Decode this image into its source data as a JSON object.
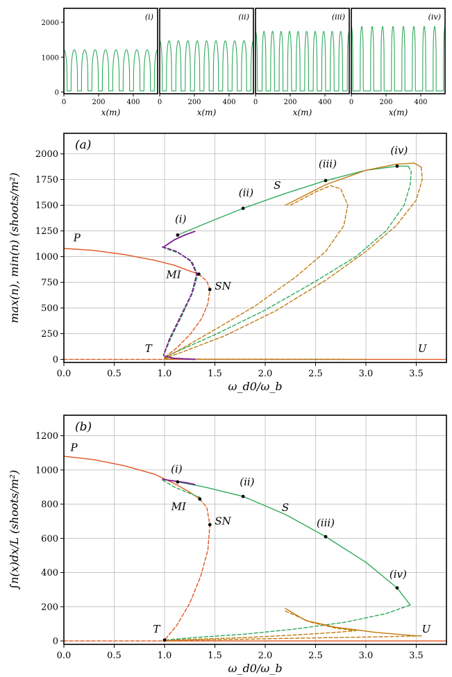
{
  "colors": {
    "P": "#e0541f",
    "S": "#2eaa5a",
    "T": "#c07a10",
    "MI": "#7a1c8c",
    "U": "#e0541f",
    "grid": "#bdbdbd"
  },
  "chart_data": [
    {
      "type": "line",
      "panel": "top-profiles",
      "panels": [
        {
          "tag": "(i)",
          "amplitude": 1210,
          "peaks": 9,
          "width": 0.62
        },
        {
          "tag": "(ii)",
          "amplitude": 1470,
          "peaks": 10,
          "width": 0.55
        },
        {
          "tag": "(iii)",
          "amplitude": 1740,
          "peaks": 11,
          "width": 0.45
        },
        {
          "tag": "(iv)",
          "amplitude": 1880,
          "peaks": 9,
          "width": 0.3
        }
      ],
      "xlabel": "x(m)",
      "xlim": [
        0,
        540
      ],
      "ylim": [
        -50,
        2400
      ],
      "xticks": [
        0,
        200,
        400
      ],
      "yticks": [
        0,
        1000,
        2000
      ]
    },
    {
      "type": "line",
      "panel": "(a)",
      "xlabel": "ω_d0/ω_b",
      "ylabel": "max(n), min(n) (shoots/m²)",
      "xlim": [
        0,
        3.8
      ],
      "ylim": [
        -30,
        2200
      ],
      "xticks": [
        "0.0",
        "0.5",
        "1.0",
        "1.5",
        "2.0",
        "2.5",
        "3.0",
        "3.5"
      ],
      "yticks": [
        "0",
        "250",
        "500",
        "750",
        "1000",
        "1250",
        "1500",
        "1750",
        "2000"
      ],
      "grid": true,
      "labels": [
        {
          "text": "P",
          "x": 0.13,
          "y": 1150
        },
        {
          "text": "S",
          "x": 2.12,
          "y": 1660
        },
        {
          "text": "T",
          "x": 0.84,
          "y": 70
        },
        {
          "text": "U",
          "x": 3.56,
          "y": 70
        },
        {
          "text": "MI",
          "x": 1.09,
          "y": 790
        },
        {
          "text": "SN",
          "x": 1.58,
          "y": 680
        },
        {
          "text": "(i)",
          "x": 1.16,
          "y": 1330
        },
        {
          "text": "(ii)",
          "x": 1.81,
          "y": 1590
        },
        {
          "text": "(iii)",
          "x": 2.62,
          "y": 1870
        },
        {
          "text": "(iv)",
          "x": 3.33,
          "y": 2000
        }
      ],
      "points": [
        {
          "x": 1.13,
          "y": 1210
        },
        {
          "x": 1.78,
          "y": 1470
        },
        {
          "x": 2.6,
          "y": 1740
        },
        {
          "x": 3.31,
          "y": 1880
        },
        {
          "x": 1.34,
          "y": 830
        },
        {
          "x": 1.45,
          "y": 680
        }
      ],
      "series": [
        {
          "key": "P",
          "style": "solid",
          "points": [
            [
              0,
              1080
            ],
            [
              0.3,
              1060
            ],
            [
              0.6,
              1020
            ],
            [
              0.9,
              965
            ],
            [
              1.1,
              915
            ],
            [
              1.25,
              860
            ],
            [
              1.34,
              830
            ]
          ]
        },
        {
          "key": "P",
          "style": "dashed",
          "points": [
            [
              1.34,
              830
            ],
            [
              1.42,
              760
            ],
            [
              1.45,
              680
            ],
            [
              1.43,
              540
            ],
            [
              1.37,
              400
            ],
            [
              1.26,
              250
            ],
            [
              1.12,
              110
            ],
            [
              1.0,
              20
            ]
          ]
        },
        {
          "key": "U",
          "style": "solid",
          "points": [
            [
              1.0,
              0
            ],
            [
              3.8,
              0
            ]
          ]
        },
        {
          "key": "U",
          "style": "dashed",
          "points": [
            [
              0,
              0
            ],
            [
              1.0,
              0
            ]
          ]
        },
        {
          "key": "S",
          "style": "solid",
          "points": [
            [
              1.13,
              1210
            ],
            [
              1.4,
              1320
            ],
            [
              1.78,
              1470
            ],
            [
              2.2,
              1615
            ],
            [
              2.6,
              1740
            ],
            [
              3.0,
              1840
            ],
            [
              3.31,
              1880
            ],
            [
              3.42,
              1880
            ]
          ]
        },
        {
          "key": "S",
          "style": "dashed",
          "points": [
            [
              3.42,
              1880
            ],
            [
              3.45,
              1830
            ],
            [
              3.44,
              1700
            ],
            [
              3.38,
              1500
            ],
            [
              3.2,
              1250
            ],
            [
              2.9,
              1000
            ],
            [
              2.5,
              760
            ],
            [
              2.0,
              480
            ],
            [
              1.5,
              240
            ],
            [
              1.2,
              110
            ],
            [
              1.02,
              30
            ]
          ]
        },
        {
          "key": "S",
          "style": "dashed",
          "points": [
            [
              1.0,
              10
            ],
            [
              1.3,
              3
            ],
            [
              2.0,
              1
            ],
            [
              2.8,
              0
            ]
          ]
        },
        {
          "key": "S",
          "style": "dashed",
          "points": [
            [
              0.98,
              1090
            ],
            [
              1.15,
              1030
            ],
            [
              1.28,
              940
            ],
            [
              1.33,
              820
            ],
            [
              1.28,
              650
            ],
            [
              1.17,
              420
            ],
            [
              1.06,
              200
            ],
            [
              0.99,
              40
            ]
          ]
        },
        {
          "key": "T",
          "style": "solid",
          "points": [
            [
              2.2,
              1500
            ],
            [
              2.6,
              1700
            ],
            [
              3.0,
              1840
            ],
            [
              3.3,
              1900
            ],
            [
              3.48,
              1910
            ],
            [
              3.55,
              1870
            ]
          ]
        },
        {
          "key": "T",
          "style": "dashed",
          "points": [
            [
              3.55,
              1870
            ],
            [
              3.56,
              1750
            ],
            [
              3.5,
              1550
            ],
            [
              3.3,
              1300
            ],
            [
              3.0,
              1050
            ],
            [
              2.6,
              770
            ],
            [
              2.1,
              470
            ],
            [
              1.6,
              230
            ],
            [
              1.2,
              80
            ],
            [
              1.0,
              10
            ]
          ]
        },
        {
          "key": "T",
          "style": "dashed",
          "points": [
            [
              2.25,
              1500
            ],
            [
              2.5,
              1630
            ],
            [
              2.65,
              1690
            ],
            [
              2.75,
              1660
            ],
            [
              2.82,
              1500
            ],
            [
              2.78,
              1300
            ],
            [
              2.6,
              1050
            ],
            [
              2.3,
              800
            ],
            [
              1.9,
              520
            ],
            [
              1.5,
              290
            ],
            [
              1.2,
              120
            ],
            [
              1.0,
              15
            ]
          ]
        },
        {
          "key": "T",
          "style": "dashed",
          "points": [
            [
              1.0,
              5
            ],
            [
              1.5,
              2
            ],
            [
              2.2,
              1
            ],
            [
              3.0,
              0
            ]
          ]
        },
        {
          "key": "MI",
          "style": "solid",
          "points": [
            [
              1.0,
              1100
            ],
            [
              1.1,
              1165
            ],
            [
              1.2,
              1210
            ],
            [
              1.3,
              1245
            ]
          ]
        },
        {
          "key": "MI",
          "style": "dashed",
          "points": [
            [
              0.98,
              1095
            ],
            [
              1.12,
              1050
            ],
            [
              1.26,
              960
            ],
            [
              1.32,
              830
            ],
            [
              1.27,
              640
            ],
            [
              1.16,
              420
            ],
            [
              1.05,
              200
            ],
            [
              0.99,
              40
            ]
          ]
        },
        {
          "key": "MI",
          "style": "solid",
          "points": [
            [
              1.0,
              30
            ],
            [
              1.1,
              10
            ],
            [
              1.3,
              0
            ]
          ]
        }
      ]
    },
    {
      "type": "line",
      "panel": "(b)",
      "xlabel": "ω_d0/ω_b",
      "ylabel": "∫n(x)dx/L (shoots/m²)",
      "xlim": [
        0,
        3.8
      ],
      "ylim": [
        -20,
        1320
      ],
      "xticks": [
        "0.0",
        "0.5",
        "1.0",
        "1.5",
        "2.0",
        "2.5",
        "3.0",
        "3.5"
      ],
      "yticks": [
        "0",
        "200",
        "400",
        "600",
        "800",
        "1000",
        "1200"
      ],
      "grid": true,
      "labels": [
        {
          "text": "P",
          "x": 0.1,
          "y": 1110
        },
        {
          "text": "S",
          "x": 2.2,
          "y": 760
        },
        {
          "text": "T",
          "x": 0.92,
          "y": 50
        },
        {
          "text": "U",
          "x": 3.6,
          "y": 50
        },
        {
          "text": "MI",
          "x": 1.14,
          "y": 765
        },
        {
          "text": "SN",
          "x": 1.58,
          "y": 680
        },
        {
          "text": "(i)",
          "x": 1.12,
          "y": 985
        },
        {
          "text": "(ii)",
          "x": 1.82,
          "y": 910
        },
        {
          "text": "(iii)",
          "x": 2.6,
          "y": 670
        },
        {
          "text": "(iv)",
          "x": 3.32,
          "y": 370
        }
      ],
      "points": [
        {
          "x": 1.13,
          "y": 930
        },
        {
          "x": 1.78,
          "y": 845
        },
        {
          "x": 2.6,
          "y": 610
        },
        {
          "x": 3.31,
          "y": 310
        },
        {
          "x": 1.35,
          "y": 830
        },
        {
          "x": 1.45,
          "y": 680
        },
        {
          "x": 1.0,
          "y": 5
        }
      ],
      "series": [
        {
          "key": "P",
          "style": "solid",
          "points": [
            [
              0,
              1080
            ],
            [
              0.3,
              1060
            ],
            [
              0.6,
              1025
            ],
            [
              0.9,
              975
            ],
            [
              1.1,
              920
            ],
            [
              1.25,
              870
            ],
            [
              1.35,
              830
            ]
          ]
        },
        {
          "key": "P",
          "style": "dashed",
          "points": [
            [
              1.35,
              830
            ],
            [
              1.42,
              780
            ],
            [
              1.45,
              680
            ],
            [
              1.43,
              530
            ],
            [
              1.36,
              380
            ],
            [
              1.25,
              220
            ],
            [
              1.12,
              90
            ],
            [
              1.0,
              5
            ]
          ]
        },
        {
          "key": "U",
          "style": "solid",
          "points": [
            [
              1.0,
              0
            ],
            [
              3.8,
              0
            ]
          ]
        },
        {
          "key": "U",
          "style": "dashed",
          "points": [
            [
              0,
              0
            ],
            [
              1.0,
              0
            ]
          ]
        },
        {
          "key": "S",
          "style": "solid",
          "points": [
            [
              1.13,
              930
            ],
            [
              1.4,
              900
            ],
            [
              1.78,
              845
            ],
            [
              2.2,
              740
            ],
            [
              2.6,
              610
            ],
            [
              3.0,
              460
            ],
            [
              3.31,
              310
            ],
            [
              3.44,
              210
            ]
          ]
        },
        {
          "key": "S",
          "style": "dashed",
          "points": [
            [
              3.44,
              210
            ],
            [
              3.2,
              160
            ],
            [
              2.8,
              110
            ],
            [
              2.3,
              70
            ],
            [
              1.8,
              40
            ],
            [
              1.3,
              20
            ],
            [
              1.0,
              5
            ]
          ]
        },
        {
          "key": "S",
          "style": "dashed",
          "points": [
            [
              0.98,
              940
            ],
            [
              1.1,
              900
            ],
            [
              1.22,
              870
            ],
            [
              1.35,
              840
            ]
          ]
        },
        {
          "key": "T",
          "style": "solid",
          "points": [
            [
              2.2,
              190
            ],
            [
              2.4,
              120
            ],
            [
              2.7,
              80
            ],
            [
              3.1,
              50
            ],
            [
              3.5,
              30
            ],
            [
              3.55,
              30
            ]
          ]
        },
        {
          "key": "T",
          "style": "dashed",
          "points": [
            [
              3.55,
              30
            ],
            [
              3.2,
              25
            ],
            [
              2.7,
              20
            ],
            [
              2.2,
              15
            ],
            [
              1.6,
              8
            ],
            [
              1.0,
              2
            ]
          ]
        },
        {
          "key": "T",
          "style": "dashed",
          "points": [
            [
              2.2,
              175
            ],
            [
              2.45,
              110
            ],
            [
              2.7,
              75
            ],
            [
              2.9,
              60
            ],
            [
              2.7,
              50
            ],
            [
              2.3,
              35
            ],
            [
              1.8,
              20
            ],
            [
              1.3,
              10
            ],
            [
              1.0,
              3
            ]
          ]
        },
        {
          "key": "MI",
          "style": "solid",
          "points": [
            [
              0.98,
              945
            ],
            [
              1.1,
              935
            ],
            [
              1.22,
              925
            ],
            [
              1.3,
              915
            ]
          ]
        }
      ]
    }
  ]
}
